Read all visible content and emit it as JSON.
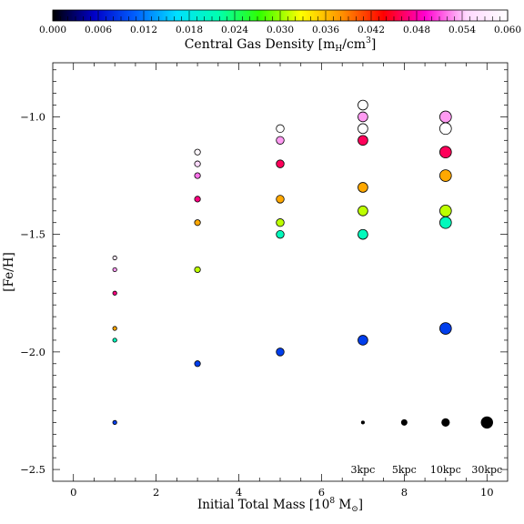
{
  "colorbar": {
    "label": "Central Gas Density [m_H/cm^3]",
    "label_main": "Central Gas Density [m",
    "label_sub": "H",
    "label_mid": "/cm",
    "label_sup": "3",
    "label_end": "]",
    "range": [
      0.0,
      0.06
    ],
    "ticks": [
      "0.000",
      "0.006",
      "0.012",
      "0.018",
      "0.024",
      "0.030",
      "0.036",
      "0.042",
      "0.048",
      "0.054",
      "0.060"
    ],
    "tick_values": [
      0.0,
      0.006,
      0.012,
      0.018,
      0.024,
      0.03,
      0.036,
      0.042,
      0.048,
      0.054,
      0.06
    ],
    "stops": [
      "#000000",
      "#0000c8",
      "#0060ff",
      "#00e0ff",
      "#00ffb0",
      "#30ff00",
      "#ffff00",
      "#ff9000",
      "#ff0000",
      "#ff00d0",
      "#ffd8ff",
      "#ffffff"
    ]
  },
  "chart_data": {
    "type": "scatter",
    "xlabel": "Initial Total Mass [10^8 M_⊙]",
    "xlabel_main": "Initial Total Mass [10",
    "xlabel_sup": "8",
    "xlabel_end": " M",
    "xlabel_sub": "⊙",
    "xlabel_close": "]",
    "ylabel": "[Fe/H]",
    "xlim": [
      -0.5,
      10.5
    ],
    "ylim": [
      -2.55,
      -0.77
    ],
    "xticks": [
      0,
      2,
      4,
      6,
      8,
      10
    ],
    "xtick_labels": [
      "0",
      "2",
      "4",
      "6",
      "8",
      "10"
    ],
    "yticks": [
      -2.5,
      -2.0,
      -1.5,
      -1.0
    ],
    "ytick_labels": [
      "−2.5",
      "−2.0",
      "−1.5",
      "−1.0"
    ],
    "grid": false,
    "series": [
      {
        "points": [
          {
            "x": 1,
            "y": -1.6,
            "density": 0.057,
            "size": 1
          },
          {
            "x": 1,
            "y": -1.65,
            "density": 0.053,
            "size": 1
          },
          {
            "x": 1,
            "y": -1.75,
            "density": 0.047,
            "size": 1
          },
          {
            "x": 1,
            "y": -1.9,
            "density": 0.037,
            "size": 1
          },
          {
            "x": 1,
            "y": -1.95,
            "density": 0.021,
            "size": 1
          },
          {
            "x": 1,
            "y": -2.3,
            "density": 0.009,
            "size": 1
          },
          {
            "x": 3,
            "y": -1.15,
            "density": 0.059,
            "size": 2
          },
          {
            "x": 3,
            "y": -1.2,
            "density": 0.055,
            "size": 2
          },
          {
            "x": 3,
            "y": -1.25,
            "density": 0.052,
            "size": 2
          },
          {
            "x": 3,
            "y": -1.35,
            "density": 0.047,
            "size": 2
          },
          {
            "x": 3,
            "y": -1.45,
            "density": 0.037,
            "size": 2
          },
          {
            "x": 3,
            "y": -1.65,
            "density": 0.031,
            "size": 2
          },
          {
            "x": 3,
            "y": -2.05,
            "density": 0.009,
            "size": 2
          },
          {
            "x": 5,
            "y": -1.05,
            "density": 0.06,
            "size": 3
          },
          {
            "x": 5,
            "y": -1.1,
            "density": 0.053,
            "size": 3
          },
          {
            "x": 5,
            "y": -1.2,
            "density": 0.046,
            "size": 3
          },
          {
            "x": 5,
            "y": -1.35,
            "density": 0.037,
            "size": 3
          },
          {
            "x": 5,
            "y": -1.45,
            "density": 0.031,
            "size": 3
          },
          {
            "x": 5,
            "y": -1.5,
            "density": 0.021,
            "size": 3
          },
          {
            "x": 5,
            "y": -2.0,
            "density": 0.009,
            "size": 3
          },
          {
            "x": 7,
            "y": -0.95,
            "density": 0.06,
            "size": 4
          },
          {
            "x": 7,
            "y": -1.0,
            "density": 0.053,
            "size": 4
          },
          {
            "x": 7,
            "y": -1.05,
            "density": 0.06,
            "size": 4
          },
          {
            "x": 7,
            "y": -1.1,
            "density": 0.046,
            "size": 4
          },
          {
            "x": 7,
            "y": -1.3,
            "density": 0.037,
            "size": 4
          },
          {
            "x": 7,
            "y": -1.4,
            "density": 0.031,
            "size": 4
          },
          {
            "x": 7,
            "y": -1.5,
            "density": 0.021,
            "size": 4
          },
          {
            "x": 7,
            "y": -1.95,
            "density": 0.009,
            "size": 4
          },
          {
            "x": 9,
            "y": -1.0,
            "density": 0.053,
            "size": 5
          },
          {
            "x": 9,
            "y": -1.05,
            "density": 0.06,
            "size": 5
          },
          {
            "x": 9,
            "y": -1.15,
            "density": 0.046,
            "size": 5
          },
          {
            "x": 9,
            "y": -1.25,
            "density": 0.037,
            "size": 5
          },
          {
            "x": 9,
            "y": -1.4,
            "density": 0.031,
            "size": 5
          },
          {
            "x": 9,
            "y": -1.45,
            "density": 0.021,
            "size": 5
          },
          {
            "x": 9,
            "y": -1.9,
            "density": 0.009,
            "size": 5
          }
        ]
      }
    ],
    "size_legend": [
      {
        "label": "3kpc",
        "x": 7,
        "y": -2.3,
        "size": 1
      },
      {
        "label": "5kpc",
        "x": 8,
        "y": -2.3,
        "size": 2
      },
      {
        "label": "10kpc",
        "x": 9,
        "y": -2.3,
        "size": 3
      },
      {
        "label": "30kpc",
        "x": 10,
        "y": -2.3,
        "size": 5
      }
    ],
    "size_legend_label_y": -2.5
  }
}
